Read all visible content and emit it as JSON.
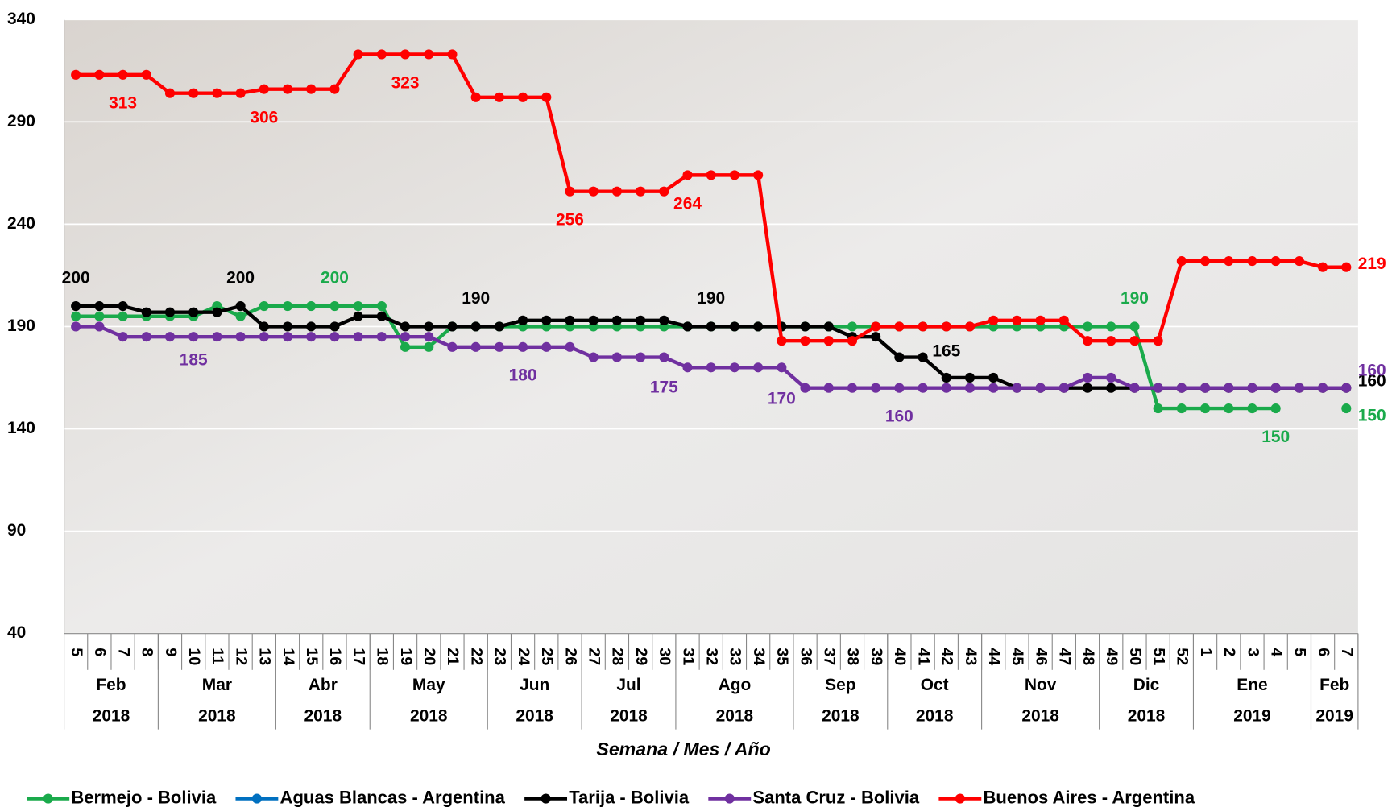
{
  "chart_data": {
    "type": "line",
    "x_label": "Semana / Mes / Año",
    "categories": [
      5,
      6,
      7,
      8,
      9,
      10,
      11,
      12,
      13,
      14,
      15,
      16,
      17,
      18,
      19,
      20,
      21,
      22,
      23,
      24,
      25,
      26,
      27,
      28,
      29,
      30,
      31,
      32,
      33,
      34,
      35,
      36,
      37,
      38,
      39,
      40,
      41,
      42,
      43,
      44,
      45,
      46,
      47,
      48,
      49,
      50,
      51,
      52,
      1,
      2,
      3,
      4,
      5,
      6,
      7
    ],
    "groups": [
      {
        "label": "Feb",
        "year": "2018",
        "span": 4
      },
      {
        "label": "Mar",
        "year": "2018",
        "span": 5
      },
      {
        "label": "Abr",
        "year": "2018",
        "span": 4
      },
      {
        "label": "May",
        "year": "2018",
        "span": 5
      },
      {
        "label": "Jun",
        "year": "2018",
        "span": 4
      },
      {
        "label": "Jul",
        "year": "2018",
        "span": 4
      },
      {
        "label": "Ago",
        "year": "2018",
        "span": 5
      },
      {
        "label": "Sep",
        "year": "2018",
        "span": 4
      },
      {
        "label": "Oct",
        "year": "2018",
        "span": 4
      },
      {
        "label": "Nov",
        "year": "2018",
        "span": 5
      },
      {
        "label": "Dic",
        "year": "2018",
        "span": 4
      },
      {
        "label": "Ene",
        "year": "2019",
        "span": 5
      },
      {
        "label": "Feb",
        "year": "2019",
        "span": 2
      }
    ],
    "ylim": [
      40,
      340
    ],
    "yticks": [
      40,
      90,
      140,
      190,
      240,
      290,
      340
    ],
    "grid": true,
    "series": [
      {
        "name": "Bermejo - Bolivia",
        "color": "#1aaa4b",
        "values": [
          195,
          195,
          195,
          195,
          195,
          195,
          200,
          195,
          200,
          200,
          200,
          200,
          200,
          200,
          180,
          180,
          190,
          190,
          190,
          190,
          190,
          190,
          190,
          190,
          190,
          190,
          190,
          190,
          190,
          190,
          190,
          190,
          190,
          190,
          190,
          190,
          190,
          190,
          190,
          190,
          190,
          190,
          190,
          190,
          190,
          190,
          150,
          150,
          150,
          150,
          150,
          150,
          null,
          null,
          150
        ]
      },
      {
        "name": "Aguas Blancas - Argentina",
        "color": "#0070c0",
        "values": [
          null,
          null,
          null,
          null,
          null,
          null,
          null,
          null,
          null,
          null,
          null,
          null,
          null,
          null,
          null,
          null,
          null,
          null,
          null,
          null,
          null,
          null,
          null,
          null,
          null,
          null,
          null,
          null,
          null,
          null,
          null,
          null,
          null,
          null,
          null,
          null,
          null,
          null,
          null,
          null,
          null,
          null,
          null,
          null,
          null,
          null,
          null,
          null,
          null,
          null,
          null,
          null,
          null,
          null,
          null
        ]
      },
      {
        "name": "Tarija - Bolivia",
        "color": "#000000",
        "values": [
          200,
          200,
          200,
          197,
          197,
          197,
          197,
          200,
          190,
          190,
          190,
          190,
          195,
          195,
          190,
          190,
          190,
          190,
          190,
          193,
          193,
          193,
          193,
          193,
          193,
          193,
          190,
          190,
          190,
          190,
          190,
          190,
          190,
          185,
          185,
          175,
          175,
          165,
          165,
          165,
          160,
          160,
          160,
          160,
          160,
          160,
          160,
          160,
          160,
          160,
          160,
          160,
          160,
          160,
          160
        ]
      },
      {
        "name": "Santa Cruz - Bolivia",
        "color": "#7030a0",
        "values": [
          190,
          190,
          185,
          185,
          185,
          185,
          185,
          185,
          185,
          185,
          185,
          185,
          185,
          185,
          185,
          185,
          180,
          180,
          180,
          180,
          180,
          180,
          175,
          175,
          175,
          175,
          170,
          170,
          170,
          170,
          170,
          160,
          160,
          160,
          160,
          160,
          160,
          160,
          160,
          160,
          160,
          160,
          160,
          165,
          165,
          160,
          160,
          160,
          160,
          160,
          160,
          160,
          160,
          160,
          160
        ]
      },
      {
        "name": "Buenos Aires - Argentina",
        "color": "#ff0000",
        "values": [
          313,
          313,
          313,
          313,
          304,
          304,
          304,
          304,
          306,
          306,
          306,
          306,
          323,
          323,
          323,
          323,
          323,
          302,
          302,
          302,
          302,
          256,
          256,
          256,
          256,
          256,
          264,
          264,
          264,
          264,
          183,
          183,
          183,
          183,
          190,
          190,
          190,
          190,
          190,
          193,
          193,
          193,
          193,
          183,
          183,
          183,
          183,
          222,
          222,
          222,
          222,
          222,
          222,
          219,
          219
        ]
      }
    ]
  }
}
